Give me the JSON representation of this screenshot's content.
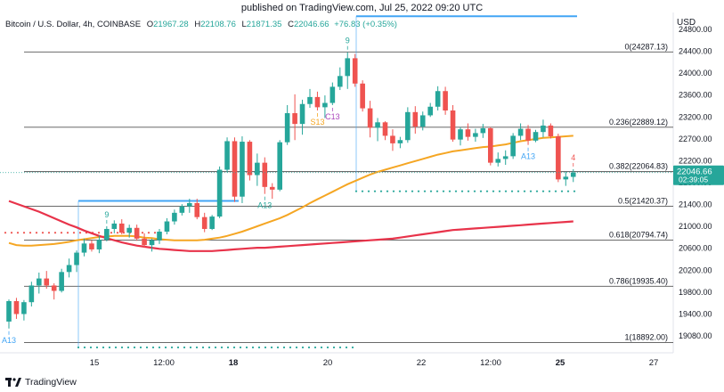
{
  "header": {
    "caption": "published on TradingView.com, Jul 25, 2022 09:20 UTC"
  },
  "symbol_bar": {
    "name": "Bitcoin / U.S. Dollar, 4h, COINBASE",
    "o_label": "O",
    "o_value": "21967.28",
    "h_label": "H",
    "h_value": "22108.76",
    "l_label": "L",
    "l_value": "21871.35",
    "c_label": "C",
    "c_value": "22046.66",
    "change": "+76.83 (+0.35%)"
  },
  "currency": "USD",
  "footer": {
    "brand": "TradingView"
  },
  "colors": {
    "up": "#26a69a",
    "down": "#ef5350",
    "ma_orange": "#f5a623",
    "ma_red": "#e8334a",
    "fib_line": "#555555",
    "blue_level": "#42a5f5",
    "dot_green": "#26a69a",
    "dot_red": "#ef5350",
    "label_bg": "#26a69a"
  },
  "chart_data": {
    "type": "candlestick",
    "ylim": [
      18700,
      25020
    ],
    "y_ticks": [
      "24800.00",
      "24400.00",
      "24000.00",
      "23600.00",
      "23200.00",
      "22700.00",
      "22200.00",
      "21800.00",
      "21400.00",
      "21000.00",
      "20600.00",
      "20200.00",
      "19800.00",
      "19400.00",
      "19080.00"
    ],
    "x_ticks": [
      "15",
      "12:00",
      "18",
      "20",
      "22",
      "12:00",
      "25",
      "27"
    ],
    "last_price": "22046.66",
    "countdown": "02:39:05",
    "fib_levels": [
      {
        "label": "0(24287.13)",
        "value": 24287.13
      },
      {
        "label": "0.236(22889.12)",
        "value": 22889.12
      },
      {
        "label": "0.382(22064.83)",
        "value": 22064.83
      },
      {
        "label": "0.5(21420.37)",
        "value": 21420.37
      },
      {
        "label": "0.618(20794.74)",
        "value": 20794.74
      },
      {
        "label": "0.786(19935.40)",
        "value": 19935.4
      },
      {
        "label": "1(18892.00)",
        "value": 18892.0
      }
    ],
    "candles": [
      [
        19280,
        19690,
        19150,
        19660
      ],
      [
        19660,
        19720,
        19330,
        19420
      ],
      [
        19420,
        19680,
        19300,
        19640
      ],
      [
        19640,
        20020,
        19560,
        19950
      ],
      [
        19950,
        20190,
        19800,
        20080
      ],
      [
        20080,
        20220,
        19890,
        19950
      ],
      [
        19950,
        19990,
        19690,
        19850
      ],
      [
        19850,
        20260,
        19820,
        20200
      ],
      [
        20200,
        20450,
        20100,
        20330
      ],
      [
        20330,
        20600,
        20200,
        20560
      ],
      [
        20560,
        20820,
        20490,
        20730
      ],
      [
        20730,
        20790,
        20580,
        20620
      ],
      [
        20620,
        20880,
        20550,
        20800
      ],
      [
        20800,
        21050,
        20770,
        21000
      ],
      [
        21000,
        21160,
        20920,
        21100
      ],
      [
        21100,
        21180,
        20900,
        20930
      ],
      [
        20930,
        21080,
        20840,
        21020
      ],
      [
        21020,
        21080,
        20780,
        20820
      ],
      [
        20820,
        20920,
        20650,
        20700
      ],
      [
        20700,
        20820,
        20580,
        20790
      ],
      [
        20790,
        21000,
        20720,
        20950
      ],
      [
        20950,
        21200,
        20900,
        21140
      ],
      [
        21140,
        21360,
        21080,
        21300
      ],
      [
        21300,
        21460,
        21250,
        21420
      ],
      [
        21420,
        21560,
        21300,
        21480
      ],
      [
        21480,
        21560,
        21180,
        21220
      ],
      [
        21220,
        21300,
        20940,
        21000
      ],
      [
        21000,
        21260,
        20980,
        21230
      ],
      [
        21230,
        22160,
        21200,
        22100
      ],
      [
        22100,
        22700,
        22050,
        22630
      ],
      [
        22630,
        22700,
        21500,
        21600
      ],
      [
        21600,
        22720,
        21480,
        22620
      ],
      [
        22620,
        22650,
        21900,
        22000
      ],
      [
        22000,
        22400,
        21800,
        22230
      ],
      [
        22230,
        22330,
        21650,
        21780
      ],
      [
        21780,
        21850,
        21560,
        21730
      ],
      [
        21730,
        22650,
        21700,
        22610
      ],
      [
        22610,
        23300,
        22560,
        23150
      ],
      [
        23150,
        23500,
        22650,
        22950
      ],
      [
        22950,
        23400,
        22750,
        23320
      ],
      [
        23320,
        23600,
        23250,
        23450
      ],
      [
        23450,
        23550,
        23200,
        23260
      ],
      [
        23260,
        23480,
        23060,
        23340
      ],
      [
        23340,
        23720,
        23300,
        23640
      ],
      [
        23640,
        24000,
        23580,
        23840
      ],
      [
        23840,
        24280,
        23600,
        24170
      ],
      [
        24170,
        24250,
        23640,
        23700
      ],
      [
        23700,
        23760,
        23180,
        23240
      ],
      [
        23240,
        23380,
        22700,
        22880
      ],
      [
        22880,
        23060,
        22630,
        22980
      ],
      [
        22980,
        23000,
        22650,
        22730
      ],
      [
        22730,
        22850,
        22450,
        22590
      ],
      [
        22590,
        22710,
        22500,
        22650
      ],
      [
        22650,
        23260,
        22600,
        23170
      ],
      [
        23170,
        23280,
        22770,
        22900
      ],
      [
        22900,
        23180,
        22830,
        23110
      ],
      [
        23110,
        23340,
        23080,
        23270
      ],
      [
        23270,
        23650,
        23200,
        23560
      ],
      [
        23560,
        23640,
        23120,
        23200
      ],
      [
        23200,
        23300,
        22620,
        22660
      ],
      [
        22660,
        22890,
        22550,
        22850
      ],
      [
        22850,
        22960,
        22640,
        22710
      ],
      [
        22710,
        22860,
        22620,
        22780
      ],
      [
        22780,
        22950,
        22690,
        22870
      ],
      [
        22870,
        22890,
        22180,
        22230
      ],
      [
        22230,
        22420,
        22160,
        22300
      ],
      [
        22300,
        22460,
        22190,
        22350
      ],
      [
        22350,
        22780,
        22300,
        22730
      ],
      [
        22730,
        22960,
        22650,
        22860
      ],
      [
        22860,
        22930,
        22560,
        22640
      ],
      [
        22640,
        22840,
        22610,
        22800
      ],
      [
        22800,
        23030,
        22700,
        22920
      ],
      [
        22920,
        22960,
        22680,
        22720
      ],
      [
        22720,
        22770,
        21870,
        21920
      ],
      [
        21920,
        22060,
        21800,
        21970
      ],
      [
        21967,
        22109,
        21871,
        22047
      ]
    ],
    "series": [
      {
        "name": "",
        "kind": "ma",
        "color": "#f5a623",
        "values": [
          20740,
          20700,
          20690,
          20690,
          20700,
          20710,
          20720,
          20740,
          20760,
          20790,
          20810,
          20830,
          20850,
          20860,
          20870,
          20870,
          20870,
          20860,
          20840,
          20830,
          20810,
          20800,
          20790,
          20790,
          20790,
          20790,
          20800,
          20820,
          20840,
          20870,
          20910,
          20950,
          21000,
          21050,
          21100,
          21150,
          21200,
          21260,
          21330,
          21400,
          21480,
          21550,
          21620,
          21690,
          21760,
          21830,
          21890,
          21950,
          22010,
          22060,
          22100,
          22140,
          22180,
          22220,
          22260,
          22300,
          22340,
          22380,
          22410,
          22440,
          22460,
          22480,
          22500,
          22520,
          22530,
          22550,
          22570,
          22600,
          22630,
          22650,
          22670,
          22690,
          22700,
          22710,
          22720,
          22730
        ]
      },
      {
        "name": "",
        "kind": "ma",
        "color": "#e8334a",
        "values": [
          21520,
          21470,
          21420,
          21370,
          21320,
          21260,
          21200,
          21140,
          21080,
          21030,
          20970,
          20920,
          20870,
          20830,
          20790,
          20750,
          20720,
          20690,
          20670,
          20650,
          20630,
          20620,
          20610,
          20600,
          20590,
          20590,
          20590,
          20590,
          20600,
          20610,
          20620,
          20630,
          20640,
          20650,
          20650,
          20660,
          20670,
          20680,
          20690,
          20700,
          20710,
          20720,
          20730,
          20740,
          20750,
          20760,
          20770,
          20780,
          20790,
          20800,
          20810,
          20820,
          20840,
          20860,
          20880,
          20900,
          20920,
          20940,
          20960,
          20980,
          20990,
          21000,
          21010,
          21020,
          21030,
          21040,
          21050,
          21060,
          21070,
          21080,
          21090,
          21100,
          21110,
          21120,
          21130,
          21140
        ]
      }
    ],
    "markers": [
      {
        "text": "A13",
        "color": "#42a5f5",
        "candle": 0,
        "pos": "below"
      },
      {
        "text": "9",
        "color": "#26a69a",
        "candle": 13,
        "pos": "above"
      },
      {
        "text": "A13",
        "color": "#26a69a",
        "candle": 34,
        "pos": "below"
      },
      {
        "text": "S13",
        "color": "#f5a623",
        "candle": 41,
        "pos": "below"
      },
      {
        "text": "C13",
        "color": "#ab47bc",
        "candle": 43,
        "pos": "below"
      },
      {
        "text": "9",
        "color": "#26a69a",
        "candle": 45,
        "pos": "above"
      },
      {
        "text": "A13",
        "color": "#42a5f5",
        "candle": 69,
        "pos": "below"
      },
      {
        "text": "4",
        "color": "#ef5350",
        "candle": 75,
        "pos": "above"
      }
    ]
  }
}
